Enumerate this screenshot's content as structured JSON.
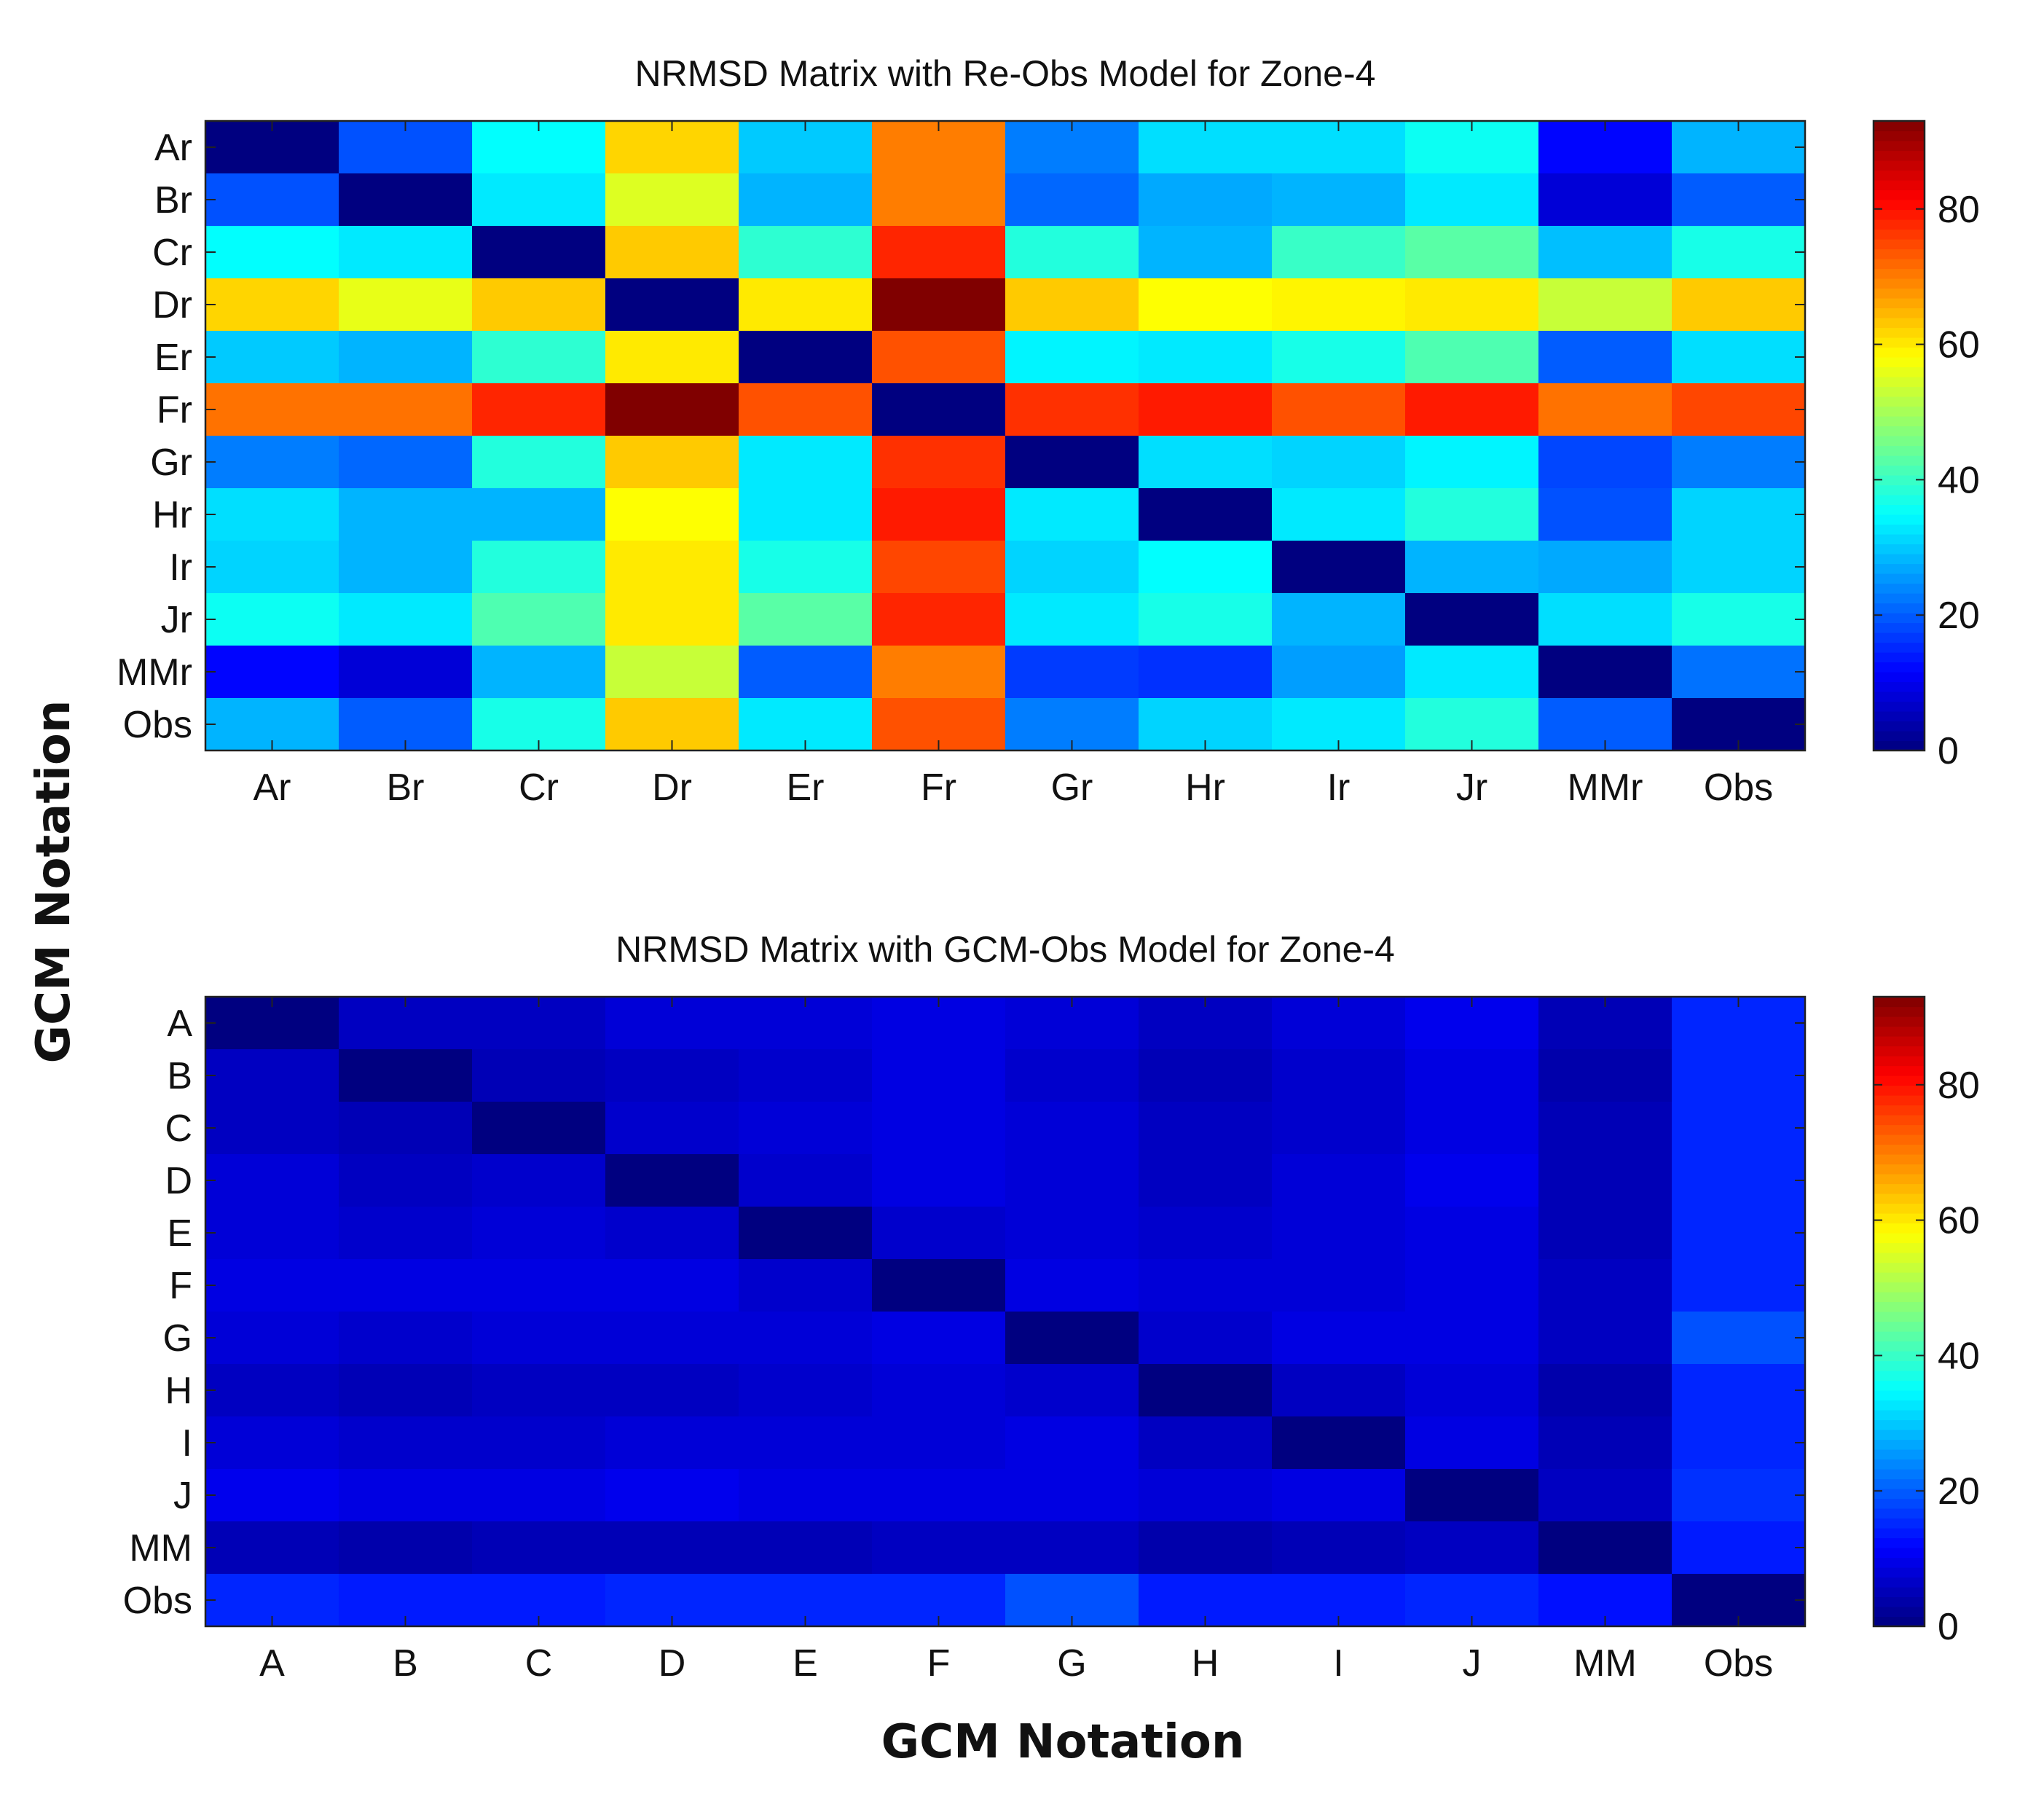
{
  "shared": {
    "ylabel": "GCM Notation",
    "xlabel": "GCM Notation",
    "colorbar_ticks": [
      "0",
      "20",
      "40",
      "60",
      "80"
    ],
    "colormap": "jet"
  },
  "chart_data": [
    {
      "type": "heatmap",
      "title": "NRMSD Matrix with Re-Obs Model for Zone-4",
      "rows": [
        "Ar",
        "Br",
        "Cr",
        "Dr",
        "Er",
        "Fr",
        "Gr",
        "Hr",
        "Ir",
        "Jr",
        "MMr",
        "Obs"
      ],
      "columns": [
        "Ar",
        "Br",
        "Cr",
        "Dr",
        "Er",
        "Fr",
        "Gr",
        "Hr",
        "Ir",
        "Jr",
        "MMr",
        "Obs"
      ],
      "color_range": [
        0,
        93
      ],
      "colorbar_ticks": [
        0,
        20,
        40,
        60,
        80
      ],
      "values": [
        [
          0,
          19,
          35,
          62,
          30,
          70,
          23,
          32,
          32,
          36,
          12,
          28
        ],
        [
          19,
          0,
          33,
          55,
          28,
          70,
          21,
          27,
          28,
          33,
          8,
          20
        ],
        [
          35,
          33,
          0,
          63,
          39,
          78,
          38,
          28,
          40,
          43,
          29,
          37
        ],
        [
          62,
          56,
          63,
          0,
          60,
          93,
          63,
          58,
          59,
          60,
          53,
          63
        ],
        [
          30,
          28,
          39,
          60,
          0,
          74,
          34,
          33,
          37,
          42,
          20,
          32
        ],
        [
          71,
          71,
          78,
          93,
          74,
          0,
          77,
          79,
          74,
          79,
          71,
          75
        ],
        [
          23,
          21,
          38,
          63,
          33,
          77,
          0,
          32,
          31,
          34,
          18,
          23
        ],
        [
          32,
          28,
          28,
          58,
          33,
          79,
          33,
          0,
          33,
          38,
          19,
          31
        ],
        [
          31,
          28,
          38,
          60,
          37,
          75,
          31,
          35,
          0,
          28,
          27,
          31
        ],
        [
          36,
          33,
          42,
          60,
          43,
          78,
          33,
          37,
          28,
          0,
          32,
          37
        ],
        [
          12,
          8,
          28,
          53,
          20,
          70,
          17,
          16,
          26,
          33,
          0,
          22
        ],
        [
          28,
          20,
          37,
          63,
          33,
          74,
          23,
          31,
          33,
          38,
          20,
          0
        ]
      ]
    },
    {
      "type": "heatmap",
      "title": "NRMSD Matrix with GCM-Obs Model for Zone-4",
      "rows": [
        "A",
        "B",
        "C",
        "D",
        "E",
        "F",
        "G",
        "H",
        "I",
        "J",
        "MM",
        "Obs"
      ],
      "columns": [
        "A",
        "B",
        "C",
        "D",
        "E",
        "F",
        "G",
        "H",
        "I",
        "J",
        "MM",
        "Obs"
      ],
      "color_range": [
        0,
        93
      ],
      "colorbar_ticks": [
        0,
        20,
        40,
        60,
        80
      ],
      "values": [
        [
          0,
          6,
          6,
          8,
          8,
          9,
          8,
          6,
          8,
          10,
          5,
          15
        ],
        [
          6,
          0,
          5,
          6,
          7,
          9,
          7,
          5,
          7,
          9,
          4,
          15
        ],
        [
          6,
          5,
          0,
          7,
          8,
          9,
          8,
          6,
          7,
          9,
          5,
          15
        ],
        [
          8,
          6,
          7,
          0,
          7,
          9,
          8,
          6,
          8,
          10,
          5,
          15
        ],
        [
          8,
          7,
          8,
          7,
          0,
          7,
          8,
          7,
          8,
          9,
          5,
          15
        ],
        [
          9,
          9,
          9,
          9,
          7,
          0,
          9,
          8,
          8,
          9,
          6,
          15
        ],
        [
          8,
          7,
          8,
          8,
          8,
          9,
          0,
          7,
          9,
          9,
          6,
          19
        ],
        [
          6,
          5,
          6,
          6,
          7,
          8,
          7,
          0,
          6,
          8,
          4,
          15
        ],
        [
          8,
          7,
          7,
          8,
          8,
          8,
          9,
          6,
          0,
          9,
          5,
          15
        ],
        [
          10,
          9,
          9,
          10,
          9,
          9,
          9,
          8,
          9,
          0,
          6,
          16
        ],
        [
          5,
          4,
          5,
          5,
          5,
          6,
          6,
          4,
          5,
          6,
          0,
          14
        ],
        [
          15,
          14,
          14,
          15,
          15,
          15,
          19,
          14,
          14,
          15,
          13,
          0
        ]
      ]
    }
  ]
}
